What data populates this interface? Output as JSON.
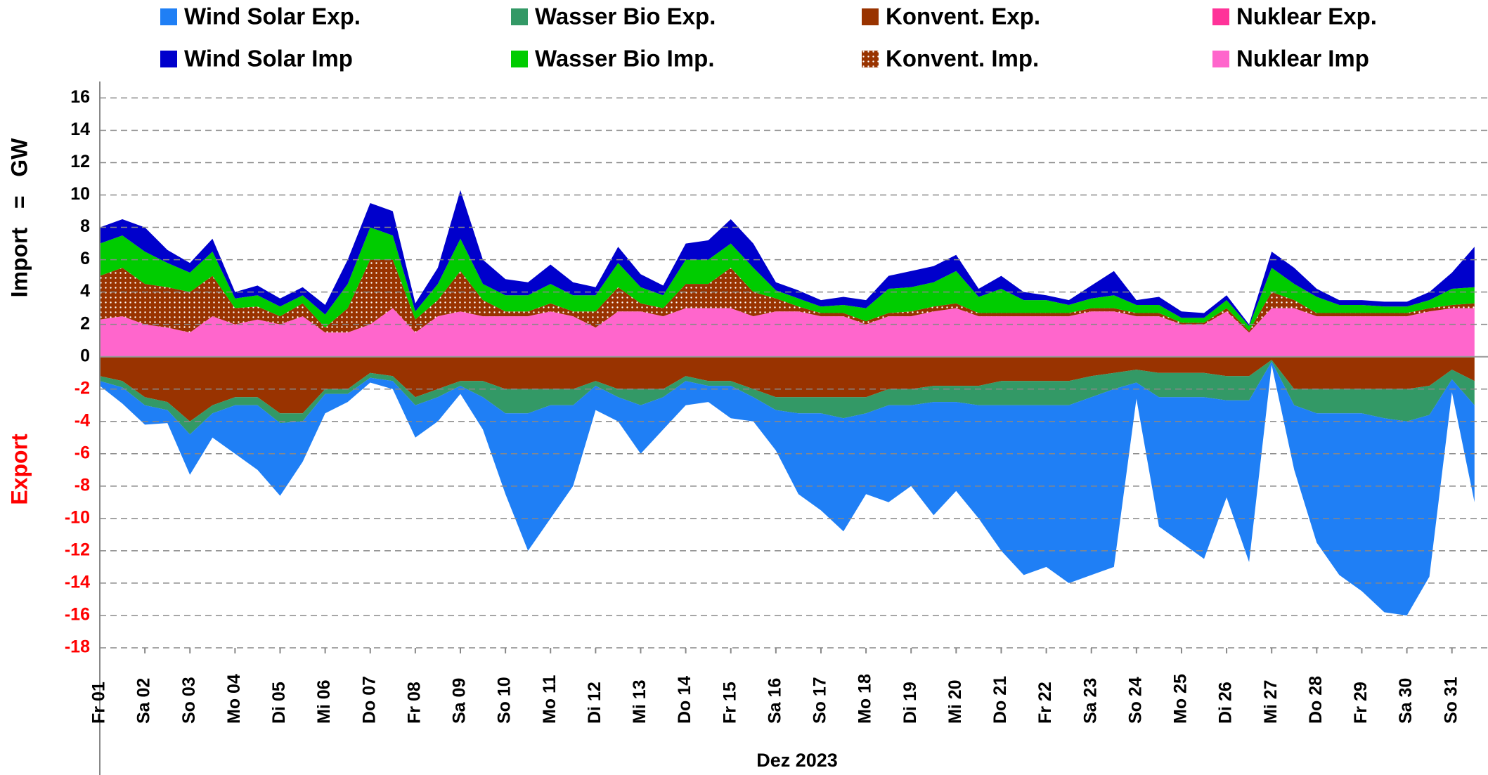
{
  "chart_data": {
    "type": "stacked-area",
    "ylabel_positive": "Import   =   GW",
    "ylabel_negative": "Export",
    "xlabel": "Dez 2023",
    "x": [
      0,
      0.5,
      1,
      1.5,
      2,
      2.5,
      3,
      3.5,
      4,
      4.5,
      5,
      5.5,
      6,
      6.5,
      7,
      7.5,
      8,
      8.5,
      9,
      9.5,
      10,
      10.5,
      11,
      11.5,
      12,
      12.5,
      13,
      13.5,
      14,
      14.5,
      15,
      15.5,
      16,
      16.5,
      17,
      17.5,
      18,
      18.5,
      19,
      19.5,
      20,
      20.5,
      21,
      21.5,
      22,
      22.5,
      23,
      23.5,
      24,
      24.5,
      25,
      25.5,
      26,
      26.5,
      27,
      27.5,
      28,
      28.5,
      29,
      29.5,
      30,
      30.5
    ],
    "xlim": [
      0,
      30.8
    ],
    "xticks": [
      {
        "value": 0,
        "label": "Fr 01"
      },
      {
        "value": 1,
        "label": "Sa 02"
      },
      {
        "value": 2,
        "label": "So 03"
      },
      {
        "value": 3,
        "label": "Mo 04"
      },
      {
        "value": 4,
        "label": "Di 05"
      },
      {
        "value": 5,
        "label": "Mi 06"
      },
      {
        "value": 6,
        "label": "Do 07"
      },
      {
        "value": 7,
        "label": "Fr 08"
      },
      {
        "value": 8,
        "label": "Sa 09"
      },
      {
        "value": 9,
        "label": "So 10"
      },
      {
        "value": 10,
        "label": "Mo 11"
      },
      {
        "value": 11,
        "label": "Di 12"
      },
      {
        "value": 12,
        "label": "Mi 13"
      },
      {
        "value": 13,
        "label": "Do 14"
      },
      {
        "value": 14,
        "label": "Fr 15"
      },
      {
        "value": 15,
        "label": "Sa 16"
      },
      {
        "value": 16,
        "label": "So 17"
      },
      {
        "value": 17,
        "label": "Mo 18"
      },
      {
        "value": 18,
        "label": "Di 19"
      },
      {
        "value": 19,
        "label": "Mi 20"
      },
      {
        "value": 20,
        "label": "Do 21"
      },
      {
        "value": 21,
        "label": "Fr 22"
      },
      {
        "value": 22,
        "label": "Sa 23"
      },
      {
        "value": 23,
        "label": "So 24"
      },
      {
        "value": 24,
        "label": "Mo 25"
      },
      {
        "value": 25,
        "label": "Di 26"
      },
      {
        "value": 26,
        "label": "Mi 27"
      },
      {
        "value": 27,
        "label": "Do 28"
      },
      {
        "value": 28,
        "label": "Fr 29"
      },
      {
        "value": 29,
        "label": "Sa 30"
      },
      {
        "value": 30,
        "label": "So 31"
      }
    ],
    "ylim": [
      -18,
      16.8
    ],
    "yticks": [
      -18,
      -16,
      -14,
      -12,
      -10,
      -8,
      -6,
      -4,
      -2,
      0,
      2,
      4,
      6,
      8,
      10,
      12,
      14,
      16
    ],
    "grid": true,
    "series": [
      {
        "name": "Wind Solar Exp.",
        "color": "#1f7ff5",
        "values": [
          -0.3,
          -1,
          -1.2,
          -0.8,
          -2.5,
          -1.5,
          -3,
          -4,
          -4.5,
          -2.5,
          -1.2,
          -0.5,
          -0.3,
          -0.5,
          -2,
          -1.5,
          -0.5,
          -2,
          -5,
          -8.5,
          -7,
          -5,
          -1.5,
          -1.5,
          -3,
          -2,
          -1.5,
          -1,
          -2,
          -1.5,
          -2.5,
          -5,
          -6,
          -7,
          -5,
          -6,
          -5,
          -7,
          -5.5,
          -7,
          -9,
          -10.5,
          -10,
          -11,
          -11,
          -11,
          -1,
          -8,
          -9,
          -10,
          -6,
          -10,
          -0.2,
          -4,
          -8,
          -10,
          -11,
          -12,
          -12,
          -10,
          -0.8,
          -6
        ]
      },
      {
        "name": "Wasser Bio Exp.",
        "color": "#339966",
        "values": [
          -0.3,
          -0.4,
          -0.5,
          -0.5,
          -0.8,
          -0.5,
          -0.5,
          -0.5,
          -0.6,
          -0.5,
          -0.3,
          -0.3,
          -0.3,
          -0.3,
          -0.5,
          -0.5,
          -0.3,
          -1,
          -1.5,
          -1.5,
          -1,
          -1,
          -0.3,
          -0.5,
          -1,
          -0.5,
          -0.3,
          -0.3,
          -0.3,
          -0.5,
          -0.8,
          -1,
          -1,
          -1.3,
          -1,
          -1,
          -1,
          -1,
          -1,
          -1.2,
          -1.5,
          -1.5,
          -1.5,
          -1.5,
          -1.3,
          -1,
          -0.8,
          -1.5,
          -1.5,
          -1.5,
          -1.5,
          -1.5,
          -0.1,
          -1,
          -1.5,
          -1.5,
          -1.5,
          -1.8,
          -2,
          -1.8,
          -0.6,
          -1.5
        ]
      },
      {
        "name": "Konvent. Exp.",
        "color": "#993300",
        "values": [
          -1.2,
          -1.5,
          -2.5,
          -2.8,
          -4,
          -3,
          -2.5,
          -2.5,
          -3.5,
          -3.5,
          -2,
          -2,
          -1,
          -1.2,
          -2.5,
          -2,
          -1.5,
          -1.5,
          -2,
          -2,
          -2,
          -2,
          -1.5,
          -2,
          -2,
          -2,
          -1.2,
          -1.5,
          -1.5,
          -2,
          -2.5,
          -2.5,
          -2.5,
          -2.5,
          -2.5,
          -2,
          -2,
          -1.8,
          -1.8,
          -1.8,
          -1.5,
          -1.5,
          -1.5,
          -1.5,
          -1.2,
          -1,
          -0.8,
          -1,
          -1,
          -1,
          -1.2,
          -1.2,
          -0.2,
          -2,
          -2,
          -2,
          -2,
          -2,
          -2,
          -1.8,
          -0.8,
          -1.5
        ]
      },
      {
        "name": "Nuklear Exp.",
        "color": "#ff3399",
        "values": [
          0,
          0,
          0,
          0,
          0,
          0,
          0,
          0,
          0,
          0,
          0,
          0,
          0,
          0,
          0,
          0,
          0,
          0,
          0,
          0,
          0,
          0,
          0,
          0,
          0,
          0,
          0,
          0,
          0,
          0,
          0,
          0,
          0,
          0,
          0,
          0,
          0,
          0,
          0,
          0,
          0,
          0,
          0,
          0,
          0,
          0,
          0,
          0,
          0,
          0,
          0,
          0,
          0,
          0,
          0,
          0,
          0,
          0,
          0,
          0,
          0,
          0
        ]
      },
      {
        "name": "Wind Solar Imp",
        "color": "#0000cc",
        "values": [
          1,
          1,
          1.5,
          0.8,
          0.6,
          0.8,
          0.4,
          0.6,
          0.5,
          0.5,
          0.6,
          1.5,
          1.5,
          1.5,
          0.5,
          1,
          3,
          1.5,
          1,
          0.8,
          1.2,
          0.8,
          0.5,
          1,
          0.8,
          0.6,
          1,
          1.2,
          1.5,
          1.5,
          0.5,
          0.5,
          0.4,
          0.5,
          0.5,
          0.8,
          1,
          1,
          1,
          0.5,
          0.8,
          0.5,
          0.3,
          0.3,
          0.8,
          1.5,
          0.3,
          0.5,
          0.4,
          0.3,
          0.3,
          0.1,
          1,
          1,
          0.5,
          0.3,
          0.3,
          0.3,
          0.3,
          0.5,
          1,
          2.5
        ]
      },
      {
        "name": "Wasser Bio Imp.",
        "color": "#00cc00",
        "values": [
          2,
          2,
          2,
          1.5,
          1.2,
          1.5,
          0.6,
          0.7,
          0.6,
          0.5,
          0.8,
          1.5,
          2,
          1.5,
          0.5,
          1,
          2,
          1,
          1,
          1,
          1.2,
          1,
          1,
          1.5,
          1,
          0.8,
          1.5,
          1.5,
          1.5,
          1.5,
          0.5,
          0.5,
          0.4,
          0.5,
          0.8,
          1.5,
          1.5,
          1.5,
          2,
          1,
          1.5,
          0.8,
          0.8,
          0.5,
          0.6,
          0.8,
          0.5,
          0.5,
          0.3,
          0.3,
          0.5,
          0.3,
          1.5,
          1,
          1,
          0.5,
          0.5,
          0.4,
          0.4,
          0.5,
          1,
          1
        ]
      },
      {
        "name": "Konvent. Imp.",
        "color": "#993300",
        "pattern": "dots",
        "values": [
          2.7,
          3,
          2.5,
          2.5,
          2.5,
          2.5,
          1,
          0.8,
          0.5,
          0.8,
          0.3,
          1.5,
          4,
          3,
          0.8,
          1,
          2.5,
          1,
          0.3,
          0.3,
          0.5,
          0.3,
          1,
          1.5,
          0.5,
          0.5,
          1.5,
          1.5,
          2.5,
          1.5,
          0.8,
          0.3,
          0.2,
          0.2,
          0.2,
          0.2,
          0.3,
          0.3,
          0.3,
          0.2,
          0.2,
          0.2,
          0.2,
          0.2,
          0.2,
          0.2,
          0.2,
          0.2,
          0.1,
          0.1,
          0.2,
          0.1,
          1,
          0.5,
          0.2,
          0.2,
          0.2,
          0.2,
          0.2,
          0.2,
          0.2,
          0.3
        ]
      },
      {
        "name": "Nuklear Imp",
        "color": "#ff66cc",
        "values": [
          2.3,
          2.5,
          2,
          1.8,
          1.5,
          2.5,
          2,
          2.3,
          2,
          2.5,
          1.5,
          1.5,
          2,
          3,
          1.5,
          2.5,
          2.8,
          2.5,
          2.5,
          2.5,
          2.8,
          2.5,
          1.8,
          2.8,
          2.8,
          2.5,
          3,
          3,
          3,
          2.5,
          2.8,
          2.8,
          2.5,
          2.5,
          2,
          2.5,
          2.5,
          2.8,
          3,
          2.5,
          2.5,
          2.5,
          2.5,
          2.5,
          2.8,
          2.8,
          2.5,
          2.5,
          2,
          2,
          2.8,
          1.5,
          3,
          3,
          2.5,
          2.5,
          2.5,
          2.5,
          2.5,
          2.8,
          3,
          3
        ]
      }
    ]
  }
}
